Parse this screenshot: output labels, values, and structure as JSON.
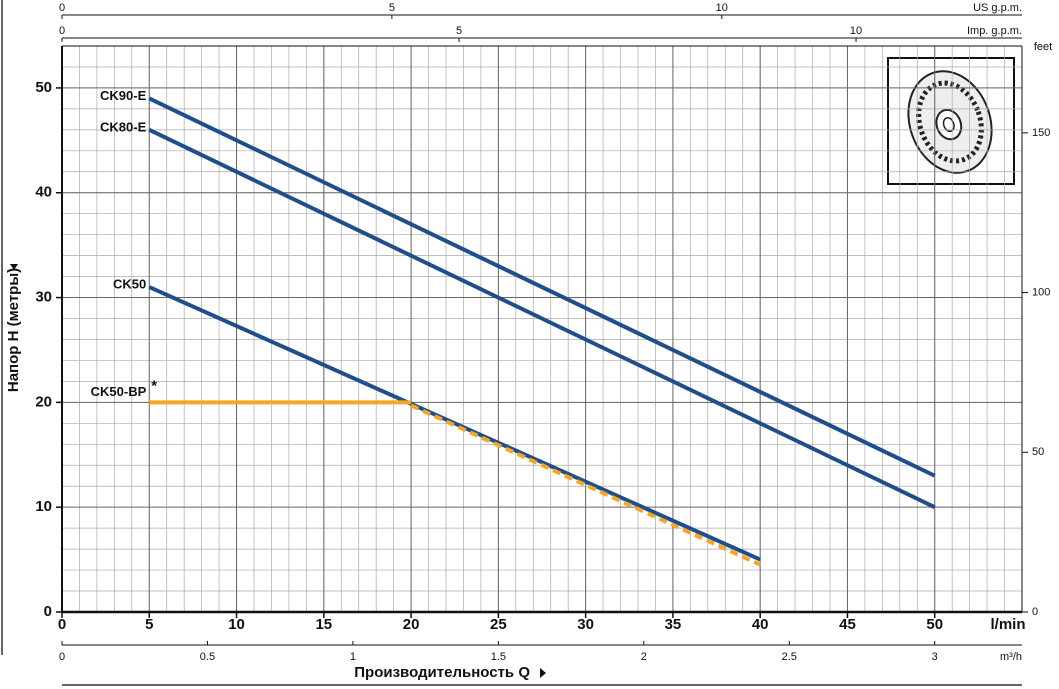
{
  "chart_data": {
    "type": "line",
    "x_label": "Производительность Q",
    "y_label": "Напор H (метры)",
    "x_unit": "l/min",
    "xlim": [
      0,
      55
    ],
    "xticks": [
      0,
      5,
      10,
      15,
      20,
      25,
      30,
      35,
      40,
      45,
      50
    ],
    "ylim": [
      0,
      54
    ],
    "yticks": [
      0,
      10,
      20,
      30,
      40,
      50
    ],
    "y2_unit": "feet",
    "y2lim": [
      0,
      177.2
    ],
    "y2ticks": [
      0,
      50,
      100,
      150
    ],
    "secondary_x_axes": [
      {
        "unit": "m³/h",
        "lim": [
          0,
          3.3
        ],
        "ticks": [
          0,
          0.5,
          1,
          1.5,
          2,
          2.5,
          3
        ],
        "position": "bottom"
      },
      {
        "unit": "US g.p.m.",
        "lim": [
          0,
          14.55
        ],
        "ticks": [
          0,
          5,
          10
        ],
        "position": "top"
      },
      {
        "unit": "Imp. g.p.m.",
        "lim": [
          0,
          12.09
        ],
        "ticks": [
          0,
          5,
          10
        ],
        "position": "top"
      }
    ],
    "grid": {
      "x_step": 1,
      "y_step": 2
    },
    "series": [
      {
        "name": "CK90-E",
        "color": "#1f4e8c",
        "x": [
          5,
          50
        ],
        "values": [
          49,
          13
        ]
      },
      {
        "name": "CK80-E",
        "color": "#1f4e8c",
        "x": [
          5,
          50
        ],
        "values": [
          46,
          10
        ]
      },
      {
        "name": "CK50",
        "color": "#1f4e8c",
        "x": [
          5,
          40
        ],
        "values": [
          31,
          5
        ]
      },
      {
        "name": "CK50-BP",
        "color": "#f5a623",
        "x": [
          5,
          20,
          40
        ],
        "values": [
          20,
          20,
          4.8
        ],
        "segment_styles": [
          "solid",
          "dashed"
        ],
        "note_mark": "*"
      }
    ]
  }
}
